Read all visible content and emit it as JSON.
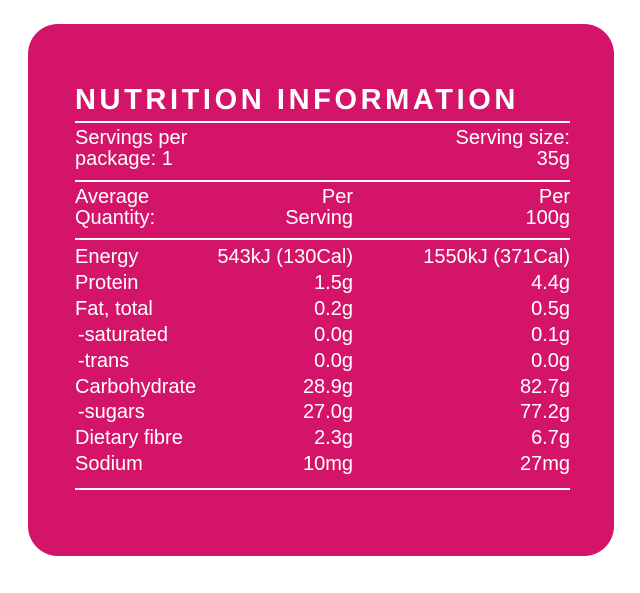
{
  "title": "NUTRITION INFORMATION",
  "servings": {
    "per_package": [
      "Servings per",
      "package: 1"
    ],
    "serving_size": [
      "Serving size:",
      "35g"
    ]
  },
  "columns": [
    [
      "Average",
      "Quantity:"
    ],
    [
      "Per",
      "Serving"
    ],
    [
      "Per",
      "100g"
    ]
  ],
  "rows": [
    [
      "Energy",
      "543kJ (130Cal)",
      "1550kJ (371Cal)"
    ],
    [
      "Protein",
      "1.5g",
      "4.4g"
    ],
    [
      "Fat, total",
      "0.2g",
      "0.5g"
    ],
    [
      "-saturated",
      "0.0g",
      "0.1g"
    ],
    [
      "-trans",
      "0.0g",
      "0.0g"
    ],
    [
      "Carbohydrate",
      "28.9g",
      "82.7g"
    ],
    [
      "-sugars",
      "27.0g",
      "77.2g"
    ],
    [
      "Dietary fibre",
      "2.3g",
      "6.7g"
    ],
    [
      "Sodium",
      "10mg",
      "27mg"
    ]
  ]
}
